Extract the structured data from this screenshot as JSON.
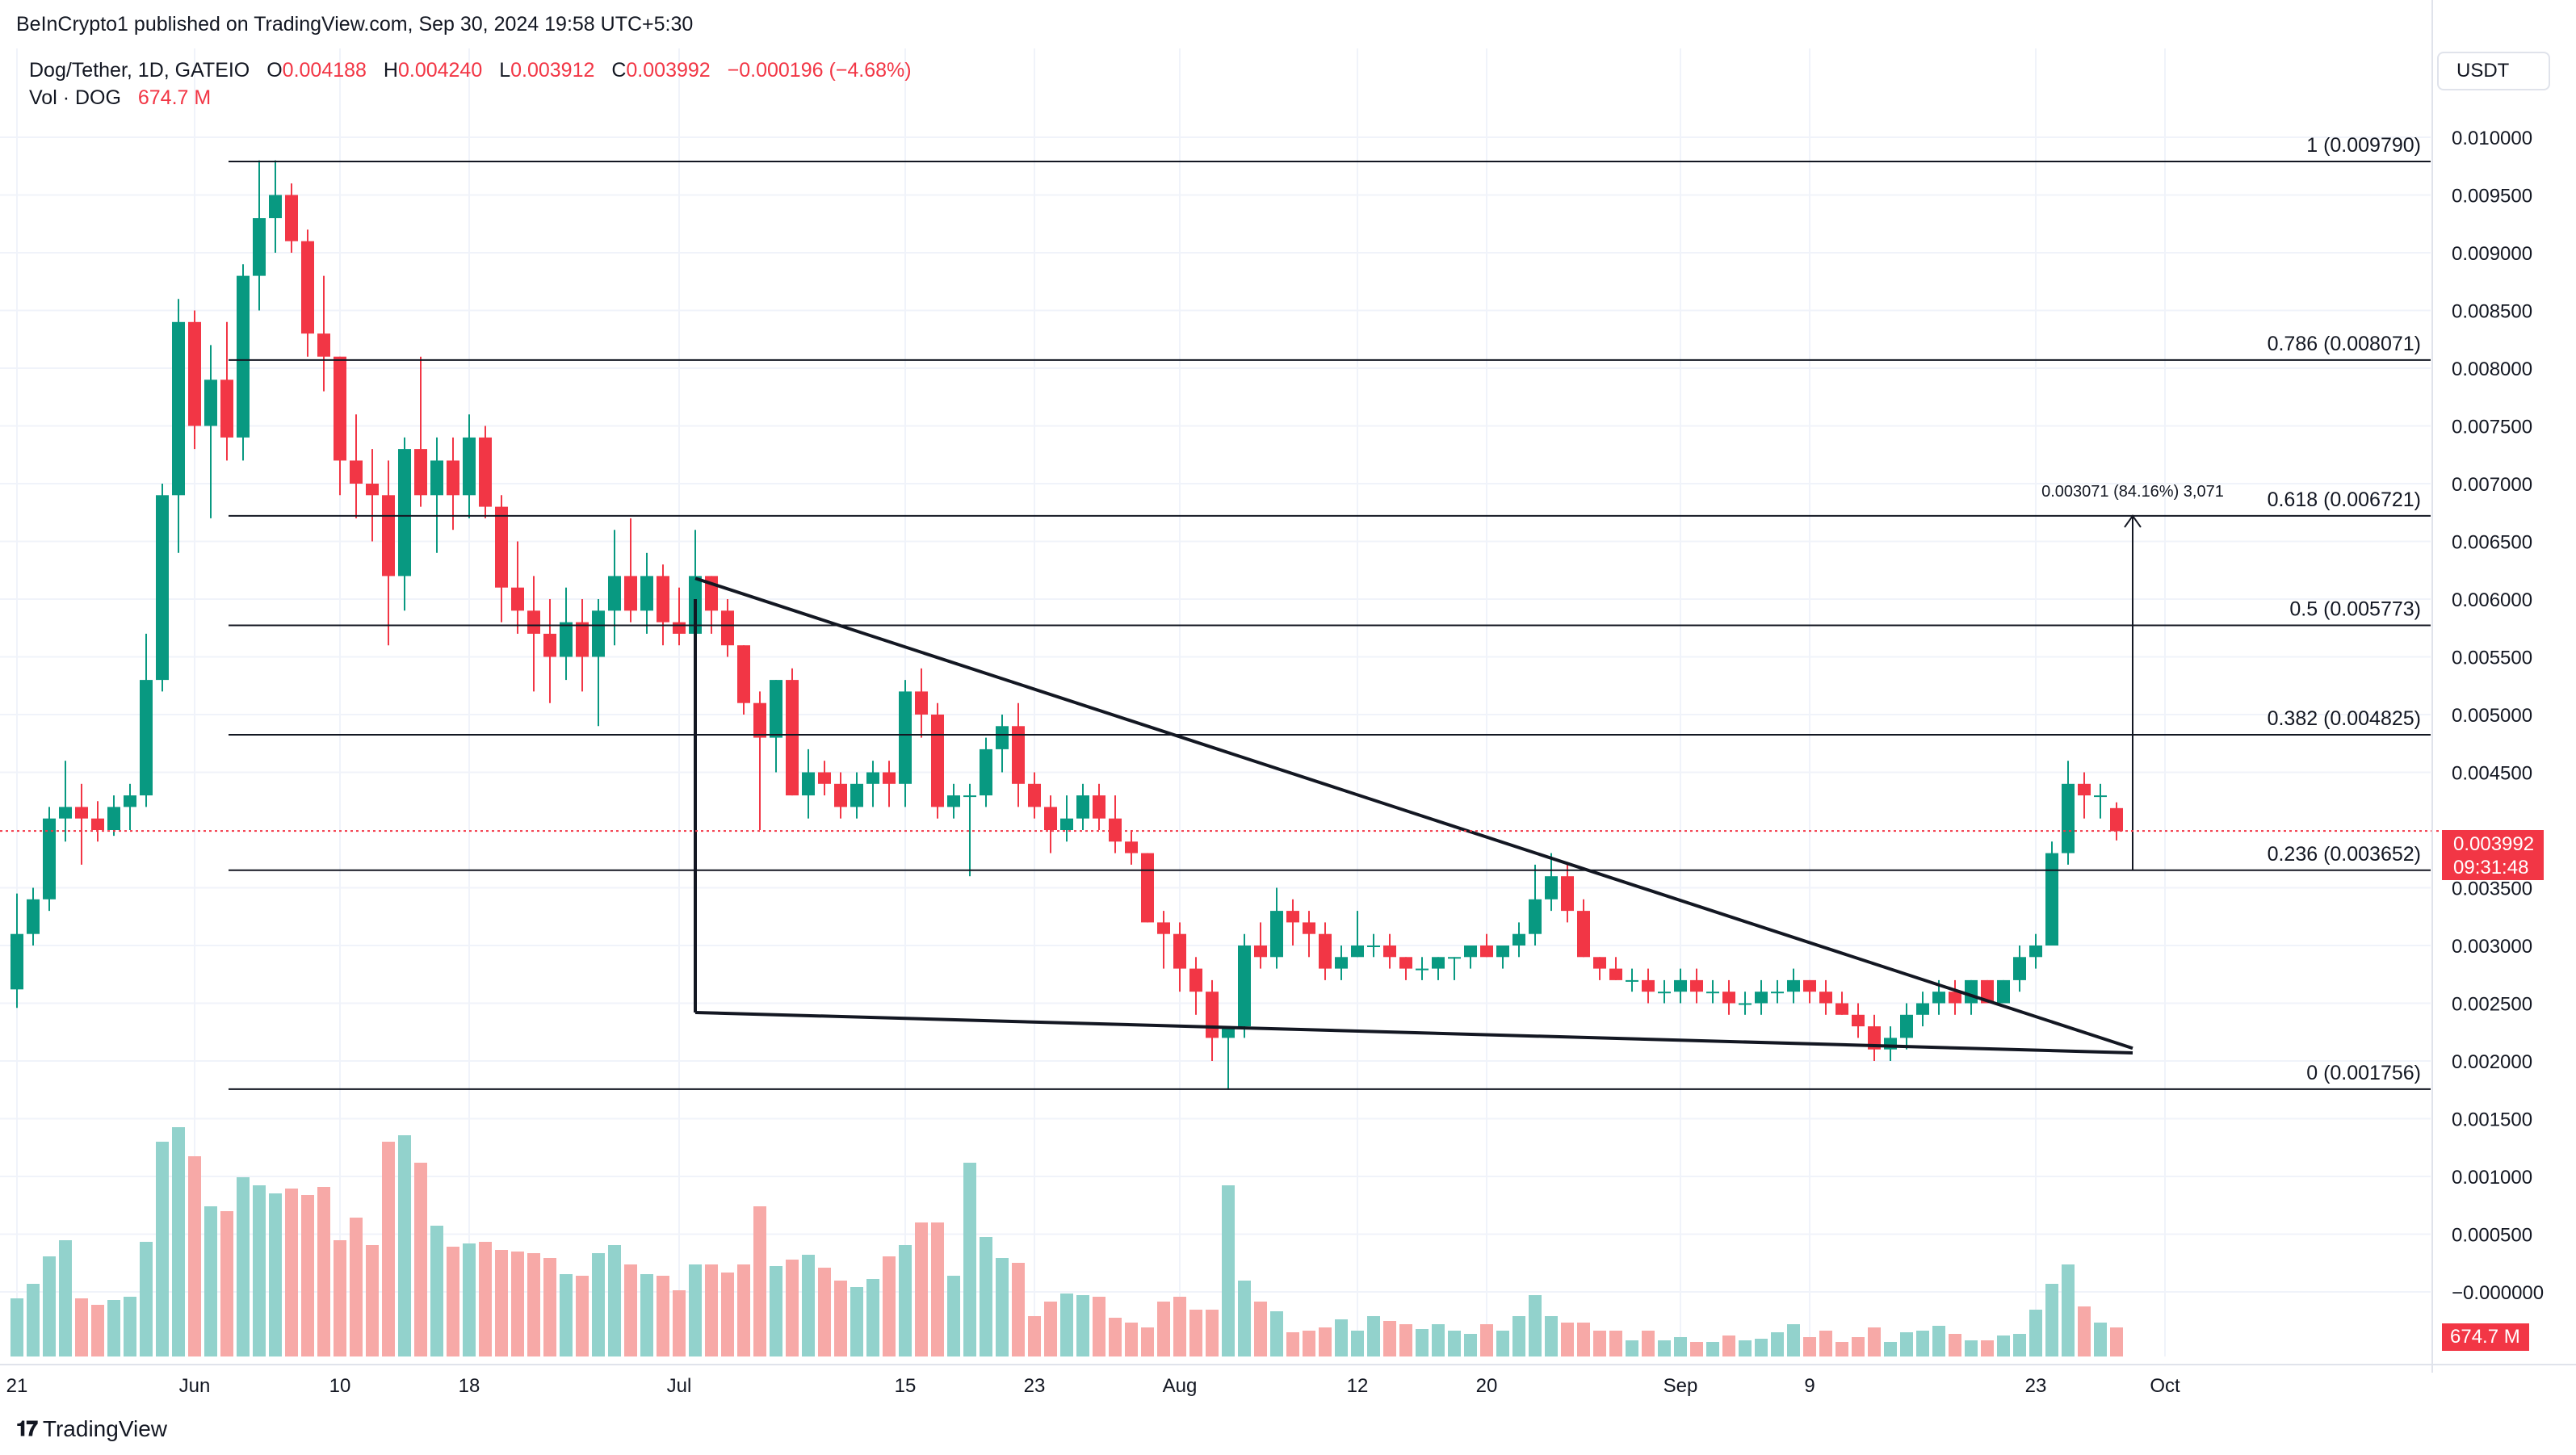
{
  "publisher": {
    "text": "BeInCrypto1 published on TradingView.com, Sep 30, 2024 19:58 UTC+5:30"
  },
  "legend": {
    "symbol": "Dog/Tether, 1D, GATEIO",
    "o_label": "O",
    "o_value": "0.004188",
    "h_label": "H",
    "h_value": "0.004240",
    "l_label": "L",
    "l_value": "0.003912",
    "c_label": "C",
    "c_value": "0.003992",
    "change": "−0.000196 (−4.68%)",
    "vol_label": "Vol · DOG",
    "vol_value": "674.7 M"
  },
  "currency": "USDT",
  "last_price": {
    "value": "0.003992",
    "countdown": "09:31:48"
  },
  "volume_tag": "674.7 M",
  "brand": "TradingView",
  "colors": {
    "up": "#089981",
    "down": "#f23645",
    "up_vol": "#92d2cc",
    "down_vol": "#f7a9a7",
    "grid": "#f0f3fa",
    "line": "#131722"
  },
  "chart_data": {
    "type": "candlestick",
    "symbol": "Dog/Tether",
    "timeframe": "1D",
    "y_axis_labels": [
      "0.010000",
      "0.009500",
      "0.009000",
      "0.008500",
      "0.008000",
      "0.007500",
      "0.007000",
      "0.006500",
      "0.006000",
      "0.005500",
      "0.005000",
      "0.004500",
      "0.003500",
      "0.003000",
      "0.002500",
      "0.002000",
      "0.001500",
      "0.001000",
      "0.000500",
      "−0.000000"
    ],
    "y_axis_values": [
      0.01,
      0.0095,
      0.009,
      0.0085,
      0.008,
      0.0075,
      0.007,
      0.0065,
      0.006,
      0.0055,
      0.005,
      0.0045,
      0.0035,
      0.003,
      0.0025,
      0.002,
      0.0015,
      0.001,
      0.0005,
      0.0
    ],
    "x_axis": [
      {
        "label": "21",
        "day": 0
      },
      {
        "label": "Jun",
        "day": 11
      },
      {
        "label": "10",
        "day": 20
      },
      {
        "label": "18",
        "day": 28
      },
      {
        "label": "Jul",
        "day": 41
      },
      {
        "label": "15",
        "day": 55
      },
      {
        "label": "23",
        "day": 63
      },
      {
        "label": "Aug",
        "day": 72
      },
      {
        "label": "12",
        "day": 83
      },
      {
        "label": "20",
        "day": 91
      },
      {
        "label": "Sep",
        "day": 103
      },
      {
        "label": "9",
        "day": 111
      },
      {
        "label": "23",
        "day": 125
      },
      {
        "label": "Oct",
        "day": 133
      }
    ],
    "fibonacci": [
      {
        "label": "1 (0.009790)",
        "value": 0.00979
      },
      {
        "label": "0.786 (0.008071)",
        "value": 0.008071
      },
      {
        "label": "0.618 (0.006721)",
        "value": 0.006721
      },
      {
        "label": "0.5 (0.005773)",
        "value": 0.005773
      },
      {
        "label": "0.382 (0.004825)",
        "value": 0.004825
      },
      {
        "label": "0.236 (0.003652)",
        "value": 0.003652
      },
      {
        "label": "0 (0.001756)",
        "value": 0.001756
      }
    ],
    "measure": {
      "label": "0.003071 (84.16%) 3,071",
      "day": 131,
      "from": 0.003652,
      "to": 0.006721
    },
    "wedge_lines": [
      {
        "from": {
          "day": 42,
          "price": 0.00618
        },
        "to": {
          "day": 131,
          "price": 0.00211
        }
      },
      {
        "from": {
          "day": 42,
          "price": 0.00242
        },
        "to": {
          "day": 131,
          "price": 0.00207
        }
      },
      {
        "from": {
          "day": 42,
          "price": 0.006
        },
        "to": {
          "day": 42,
          "price": 0.00242
        }
      }
    ],
    "candles": [
      [
        0.00262,
        0.00345,
        0.00246,
        0.0031,
        360
      ],
      [
        0.0031,
        0.0035,
        0.003,
        0.0034,
        450
      ],
      [
        0.0034,
        0.0042,
        0.0033,
        0.0041,
        620
      ],
      [
        0.0041,
        0.0046,
        0.0039,
        0.0042,
        720
      ],
      [
        0.0042,
        0.0044,
        0.0037,
        0.0041,
        360
      ],
      [
        0.0041,
        0.00425,
        0.0039,
        0.004,
        320
      ],
      [
        0.004,
        0.0043,
        0.00395,
        0.0042,
        350
      ],
      [
        0.0042,
        0.0044,
        0.004,
        0.0043,
        370
      ],
      [
        0.0043,
        0.0057,
        0.0042,
        0.0053,
        710
      ],
      [
        0.0053,
        0.007,
        0.0052,
        0.0069,
        1330
      ],
      [
        0.0069,
        0.0086,
        0.0064,
        0.0084,
        1420
      ],
      [
        0.0084,
        0.0085,
        0.0073,
        0.0075,
        1240
      ],
      [
        0.0075,
        0.0082,
        0.0067,
        0.0079,
        930
      ],
      [
        0.0079,
        0.0084,
        0.0072,
        0.0074,
        900
      ],
      [
        0.0074,
        0.0089,
        0.0072,
        0.0088,
        1110
      ],
      [
        0.0088,
        0.0098,
        0.0085,
        0.0093,
        1060
      ],
      [
        0.0093,
        0.0098,
        0.009,
        0.0095,
        1010
      ],
      [
        0.0095,
        0.0096,
        0.009,
        0.0091,
        1040
      ],
      [
        0.0091,
        0.0092,
        0.0081,
        0.0083,
        1000
      ],
      [
        0.0083,
        0.0088,
        0.0078,
        0.0081,
        1050
      ],
      [
        0.0081,
        0.0081,
        0.0069,
        0.0072,
        720
      ],
      [
        0.0072,
        0.0076,
        0.0067,
        0.007,
        860
      ],
      [
        0.007,
        0.0073,
        0.0065,
        0.0069,
        690
      ],
      [
        0.0069,
        0.0072,
        0.0056,
        0.0062,
        1330
      ],
      [
        0.0062,
        0.0074,
        0.0059,
        0.0073,
        1370
      ],
      [
        0.0073,
        0.0081,
        0.0068,
        0.0069,
        1200
      ],
      [
        0.0069,
        0.0074,
        0.0064,
        0.0072,
        810
      ],
      [
        0.0072,
        0.0074,
        0.0066,
        0.0069,
        680
      ],
      [
        0.0069,
        0.0076,
        0.0067,
        0.0074,
        700
      ],
      [
        0.0074,
        0.0075,
        0.0067,
        0.0068,
        710
      ],
      [
        0.0068,
        0.0069,
        0.0058,
        0.0061,
        660
      ],
      [
        0.0061,
        0.0065,
        0.0057,
        0.0059,
        650
      ],
      [
        0.0059,
        0.0062,
        0.0052,
        0.0057,
        640
      ],
      [
        0.0057,
        0.006,
        0.0051,
        0.0055,
        610
      ],
      [
        0.0055,
        0.0061,
        0.0053,
        0.0058,
        510
      ],
      [
        0.0058,
        0.006,
        0.0052,
        0.0055,
        500
      ],
      [
        0.0055,
        0.006,
        0.0049,
        0.0059,
        640
      ],
      [
        0.0059,
        0.0066,
        0.0056,
        0.0062,
        690
      ],
      [
        0.0062,
        0.0067,
        0.0058,
        0.0059,
        570
      ],
      [
        0.0059,
        0.0064,
        0.0057,
        0.0062,
        510
      ],
      [
        0.0062,
        0.0063,
        0.0056,
        0.0058,
        500
      ],
      [
        0.0058,
        0.0061,
        0.0056,
        0.0057,
        410
      ],
      [
        0.0057,
        0.0066,
        0.0056,
        0.0062,
        570
      ],
      [
        0.0062,
        0.0062,
        0.0057,
        0.0059,
        570
      ],
      [
        0.0059,
        0.006,
        0.0055,
        0.0056,
        520
      ],
      [
        0.0056,
        0.0056,
        0.005,
        0.0051,
        570
      ],
      [
        0.0051,
        0.0052,
        0.004,
        0.0048,
        930
      ],
      [
        0.0048,
        0.0053,
        0.0045,
        0.0053,
        560
      ],
      [
        0.0053,
        0.0054,
        0.0043,
        0.0043,
        600
      ],
      [
        0.0043,
        0.0047,
        0.0041,
        0.0045,
        630
      ],
      [
        0.0045,
        0.0046,
        0.0043,
        0.0044,
        550
      ],
      [
        0.0044,
        0.0045,
        0.0041,
        0.0042,
        470
      ],
      [
        0.0042,
        0.0045,
        0.0041,
        0.0044,
        430
      ],
      [
        0.0044,
        0.0046,
        0.0042,
        0.0045,
        480
      ],
      [
        0.0045,
        0.0046,
        0.0042,
        0.0044,
        620
      ],
      [
        0.0044,
        0.0053,
        0.0042,
        0.0052,
        690
      ],
      [
        0.0052,
        0.0054,
        0.0048,
        0.005,
        830
      ],
      [
        0.005,
        0.0051,
        0.0041,
        0.0042,
        830
      ],
      [
        0.0042,
        0.0044,
        0.0041,
        0.0043,
        500
      ],
      [
        0.0043,
        0.0044,
        0.0036,
        0.0043,
        1200
      ],
      [
        0.0043,
        0.0048,
        0.0042,
        0.0047,
        740
      ],
      [
        0.0047,
        0.005,
        0.0045,
        0.0049,
        610
      ],
      [
        0.0049,
        0.0051,
        0.0042,
        0.0044,
        580
      ],
      [
        0.0044,
        0.0045,
        0.0041,
        0.0042,
        250
      ],
      [
        0.0042,
        0.0043,
        0.0038,
        0.004,
        340
      ],
      [
        0.004,
        0.0043,
        0.0039,
        0.0041,
        390
      ],
      [
        0.0041,
        0.0044,
        0.004,
        0.0043,
        380
      ],
      [
        0.0043,
        0.0044,
        0.004,
        0.0041,
        370
      ],
      [
        0.0041,
        0.0043,
        0.0038,
        0.0039,
        240
      ],
      [
        0.0039,
        0.004,
        0.0037,
        0.0038,
        210
      ],
      [
        0.0038,
        0.0038,
        0.0032,
        0.0032,
        180
      ],
      [
        0.0032,
        0.0033,
        0.0028,
        0.0031,
        340
      ],
      [
        0.0031,
        0.0032,
        0.0026,
        0.0028,
        370
      ],
      [
        0.0028,
        0.0029,
        0.0024,
        0.0026,
        290
      ],
      [
        0.0026,
        0.0027,
        0.002,
        0.0022,
        290
      ],
      [
        0.0022,
        0.0023,
        0.00175,
        0.0023,
        1060
      ],
      [
        0.0023,
        0.0031,
        0.0022,
        0.003,
        470
      ],
      [
        0.003,
        0.0032,
        0.0028,
        0.0029,
        340
      ],
      [
        0.0029,
        0.0035,
        0.0028,
        0.0033,
        280
      ],
      [
        0.0033,
        0.0034,
        0.003,
        0.0032,
        150
      ],
      [
        0.0032,
        0.0033,
        0.0029,
        0.0031,
        160
      ],
      [
        0.0031,
        0.0032,
        0.0027,
        0.0028,
        180
      ],
      [
        0.0028,
        0.003,
        0.0027,
        0.0029,
        230
      ],
      [
        0.0029,
        0.0033,
        0.0029,
        0.003,
        160
      ],
      [
        0.003,
        0.0031,
        0.0029,
        0.003,
        250
      ],
      [
        0.003,
        0.0031,
        0.0028,
        0.0029,
        220
      ],
      [
        0.0029,
        0.0029,
        0.0027,
        0.0028,
        200
      ],
      [
        0.0028,
        0.0029,
        0.0027,
        0.0028,
        170
      ],
      [
        0.0028,
        0.0029,
        0.0027,
        0.0029,
        200
      ],
      [
        0.0029,
        0.0029,
        0.0027,
        0.0029,
        160
      ],
      [
        0.0029,
        0.003,
        0.0028,
        0.003,
        140
      ],
      [
        0.003,
        0.0031,
        0.0029,
        0.0029,
        200
      ],
      [
        0.0029,
        0.003,
        0.0028,
        0.003,
        160
      ],
      [
        0.003,
        0.0032,
        0.0029,
        0.0031,
        250
      ],
      [
        0.0031,
        0.0037,
        0.003,
        0.0034,
        380
      ],
      [
        0.0034,
        0.0038,
        0.0033,
        0.0036,
        250
      ],
      [
        0.0036,
        0.0037,
        0.0032,
        0.0033,
        210
      ],
      [
        0.0033,
        0.0034,
        0.0029,
        0.0029,
        210
      ],
      [
        0.0029,
        0.0029,
        0.0027,
        0.0028,
        160
      ],
      [
        0.0028,
        0.0029,
        0.0027,
        0.0027,
        160
      ],
      [
        0.0027,
        0.0028,
        0.0026,
        0.0027,
        100
      ],
      [
        0.0027,
        0.0028,
        0.0025,
        0.0026,
        160
      ],
      [
        0.0026,
        0.0027,
        0.0025,
        0.0026,
        100
      ],
      [
        0.0026,
        0.0028,
        0.0025,
        0.0027,
        120
      ],
      [
        0.0027,
        0.0028,
        0.0025,
        0.0026,
        90
      ],
      [
        0.0026,
        0.0027,
        0.0025,
        0.0026,
        90
      ],
      [
        0.0026,
        0.0027,
        0.0024,
        0.0025,
        130
      ],
      [
        0.0025,
        0.0026,
        0.0024,
        0.0025,
        100
      ],
      [
        0.0025,
        0.0027,
        0.0024,
        0.0026,
        110
      ],
      [
        0.0026,
        0.0027,
        0.0025,
        0.0026,
        150
      ],
      [
        0.0026,
        0.0028,
        0.0025,
        0.0027,
        200
      ],
      [
        0.0027,
        0.0027,
        0.0025,
        0.0026,
        120
      ],
      [
        0.0026,
        0.0027,
        0.0024,
        0.0025,
        160
      ],
      [
        0.0025,
        0.0026,
        0.0024,
        0.0024,
        90
      ],
      [
        0.0024,
        0.0025,
        0.0022,
        0.0023,
        120
      ],
      [
        0.0023,
        0.0024,
        0.002,
        0.0021,
        180
      ],
      [
        0.0021,
        0.0023,
        0.002,
        0.0022,
        90
      ],
      [
        0.0022,
        0.0025,
        0.0021,
        0.0024,
        150
      ],
      [
        0.0024,
        0.0026,
        0.0023,
        0.0025,
        160
      ],
      [
        0.0025,
        0.0027,
        0.0024,
        0.0026,
        190
      ],
      [
        0.0026,
        0.0027,
        0.0024,
        0.0025,
        140
      ],
      [
        0.0025,
        0.0027,
        0.0024,
        0.0027,
        100
      ],
      [
        0.0027,
        0.0027,
        0.0025,
        0.0025,
        100
      ],
      [
        0.0025,
        0.0027,
        0.0025,
        0.0027,
        130
      ],
      [
        0.0027,
        0.003,
        0.0026,
        0.0029,
        140
      ],
      [
        0.0029,
        0.0031,
        0.0028,
        0.003,
        290
      ],
      [
        0.003,
        0.0039,
        0.003,
        0.0038,
        450
      ],
      [
        0.0038,
        0.0046,
        0.0037,
        0.0044,
        570
      ],
      [
        0.0044,
        0.0045,
        0.0041,
        0.0043,
        310
      ],
      [
        0.0043,
        0.0044,
        0.0041,
        0.0043,
        210
      ],
      [
        0.00419,
        0.00424,
        0.00391,
        0.00399,
        180
      ]
    ]
  }
}
